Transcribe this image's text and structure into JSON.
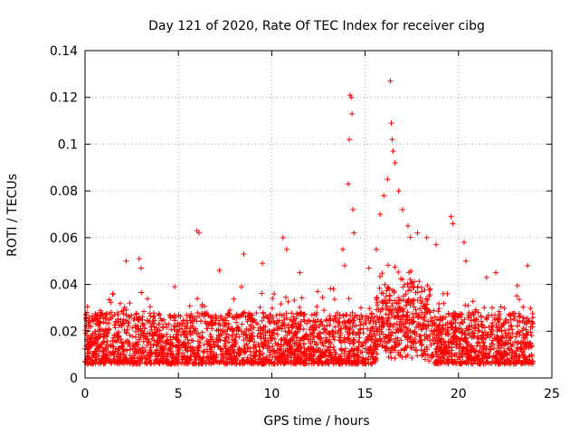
{
  "chart_data": {
    "type": "scatter",
    "title": "Day 121 of 2020, Rate Of TEC Index for receiver cibg",
    "xlabel": "GPS time / hours",
    "ylabel": "ROTI / TECUs",
    "xlim": [
      0,
      25
    ],
    "ylim": [
      0,
      0.14
    ],
    "xticks": [
      0,
      5,
      10,
      15,
      20,
      25
    ],
    "xtick_labels": [
      "0",
      "5",
      "10",
      "15",
      "20",
      "25"
    ],
    "yticks": [
      0,
      0.02,
      0.04,
      0.06,
      0.08,
      0.1,
      0.12,
      0.14
    ],
    "ytick_labels": [
      "0",
      "0.02",
      "0.04",
      "0.06",
      "0.08",
      "0.1",
      "0.12",
      "0.14"
    ],
    "grid": true,
    "marker": "+",
    "color": "#ff0000",
    "x_data_range": [
      0,
      24
    ],
    "baseline_band": {
      "low": 0.006,
      "high": 0.028
    },
    "notable_points": [
      {
        "x": 0.1,
        "y": 0.028
      },
      {
        "x": 1.5,
        "y": 0.036
      },
      {
        "x": 2.2,
        "y": 0.05
      },
      {
        "x": 2.9,
        "y": 0.051
      },
      {
        "x": 3.0,
        "y": 0.047
      },
      {
        "x": 4.8,
        "y": 0.039
      },
      {
        "x": 6.0,
        "y": 0.063
      },
      {
        "x": 6.1,
        "y": 0.062
      },
      {
        "x": 7.2,
        "y": 0.046
      },
      {
        "x": 8.5,
        "y": 0.053
      },
      {
        "x": 9.5,
        "y": 0.049
      },
      {
        "x": 10.6,
        "y": 0.06
      },
      {
        "x": 10.8,
        "y": 0.055
      },
      {
        "x": 11.5,
        "y": 0.045
      },
      {
        "x": 13.3,
        "y": 0.038
      },
      {
        "x": 13.8,
        "y": 0.055
      },
      {
        "x": 13.9,
        "y": 0.048
      },
      {
        "x": 14.1,
        "y": 0.083
      },
      {
        "x": 14.15,
        "y": 0.102
      },
      {
        "x": 14.2,
        "y": 0.121
      },
      {
        "x": 14.25,
        "y": 0.12
      },
      {
        "x": 14.3,
        "y": 0.113
      },
      {
        "x": 14.35,
        "y": 0.072
      },
      {
        "x": 14.4,
        "y": 0.062
      },
      {
        "x": 15.2,
        "y": 0.047
      },
      {
        "x": 15.6,
        "y": 0.055
      },
      {
        "x": 15.8,
        "y": 0.07
      },
      {
        "x": 16.0,
        "y": 0.078
      },
      {
        "x": 16.2,
        "y": 0.085
      },
      {
        "x": 16.35,
        "y": 0.127
      },
      {
        "x": 16.4,
        "y": 0.109
      },
      {
        "x": 16.45,
        "y": 0.102
      },
      {
        "x": 16.5,
        "y": 0.097
      },
      {
        "x": 16.6,
        "y": 0.092
      },
      {
        "x": 16.8,
        "y": 0.08
      },
      {
        "x": 17.0,
        "y": 0.072
      },
      {
        "x": 17.3,
        "y": 0.065
      },
      {
        "x": 17.8,
        "y": 0.062
      },
      {
        "x": 18.3,
        "y": 0.06
      },
      {
        "x": 18.8,
        "y": 0.057
      },
      {
        "x": 19.6,
        "y": 0.069
      },
      {
        "x": 19.7,
        "y": 0.066
      },
      {
        "x": 20.3,
        "y": 0.058
      },
      {
        "x": 20.4,
        "y": 0.05
      },
      {
        "x": 21.5,
        "y": 0.043
      },
      {
        "x": 22.0,
        "y": 0.045
      },
      {
        "x": 23.7,
        "y": 0.048
      }
    ]
  }
}
